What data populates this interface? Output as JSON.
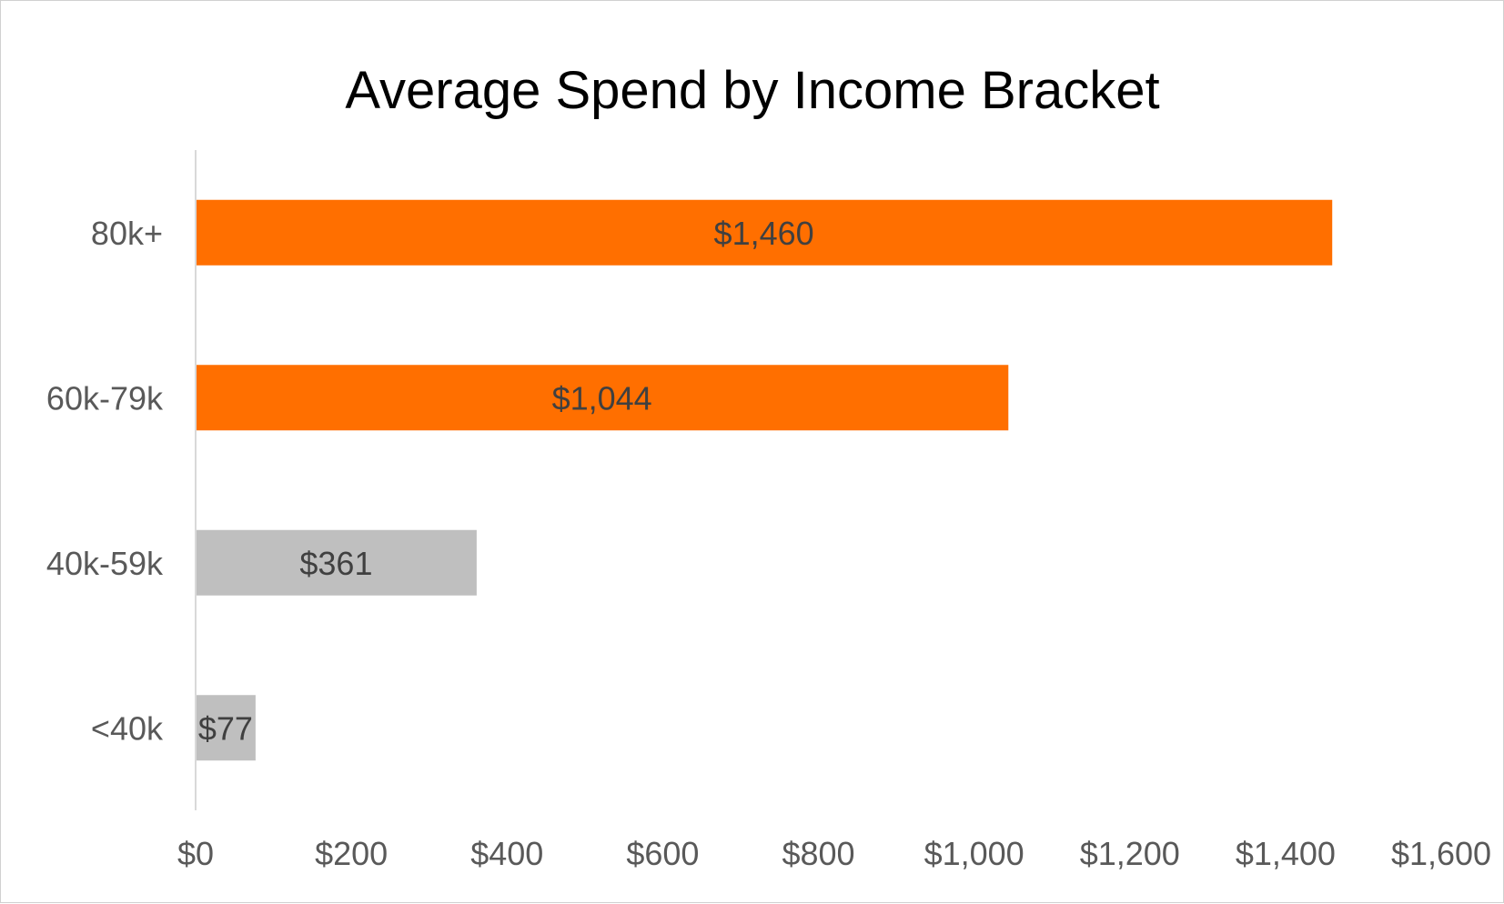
{
  "chart_data": {
    "type": "bar",
    "orientation": "horizontal",
    "title": "Average Spend by Income Bracket",
    "xlabel": "",
    "ylabel": "",
    "categories": [
      "80k+",
      "60k-79k",
      "40k-59k",
      "<40k"
    ],
    "values": [
      1460,
      1044,
      361,
      77
    ],
    "data_labels": [
      "$1,460",
      "$1,044",
      "$361",
      "$77"
    ],
    "bar_colors": [
      "#FF6F00",
      "#FF6F00",
      "#BFBFBF",
      "#BFBFBF"
    ],
    "xlim": [
      0,
      1600
    ],
    "x_ticks": [
      0,
      200,
      400,
      600,
      800,
      1000,
      1200,
      1400,
      1600
    ],
    "x_tick_labels": [
      "$0",
      "$200",
      "$400",
      "$600",
      "$800",
      "$1,000",
      "$1,200",
      "$1,400",
      "$1,600"
    ],
    "grid": false,
    "legend": "none"
  }
}
